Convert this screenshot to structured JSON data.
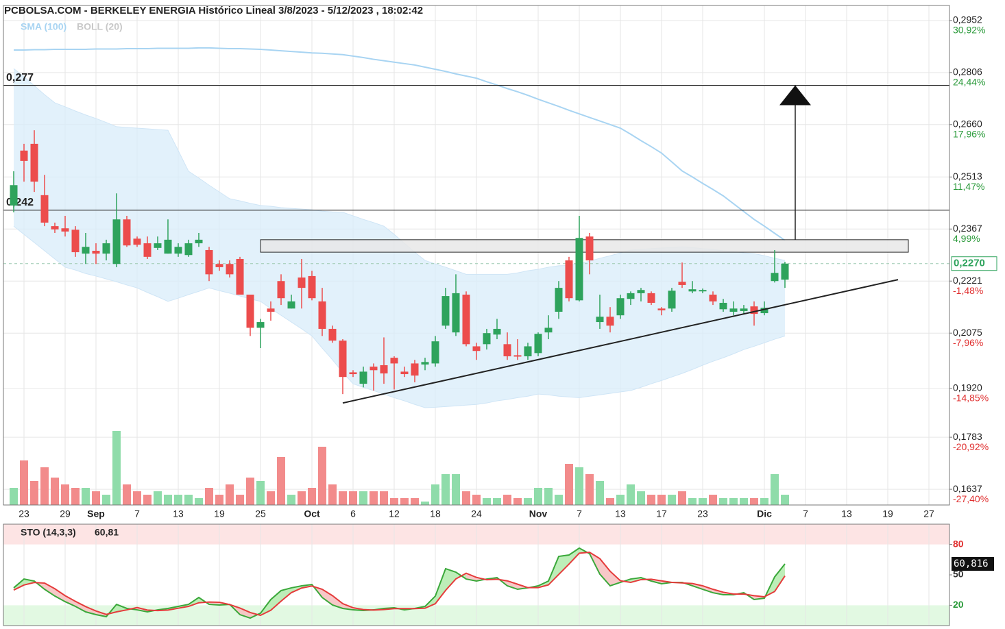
{
  "header": {
    "title": "PCBOLSA.COM - BERKELEY ENERGIA Histórico Lineal 3/8/2023 - 5/12/2023 , 18:02:42"
  },
  "chart_data": [
    {
      "type": "candlestick",
      "categories": [
        null,
        "23",
        null,
        null,
        null,
        "29",
        null,
        null,
        "Sep",
        null,
        null,
        null,
        "7",
        null,
        null,
        null,
        "13",
        null,
        null,
        null,
        "19",
        null,
        null,
        null,
        "25",
        null,
        null,
        null,
        null,
        "Oct",
        null,
        null,
        null,
        "6",
        null,
        null,
        null,
        "12",
        null,
        null,
        null,
        "18",
        null,
        null,
        null,
        "24",
        null,
        null,
        null,
        null,
        null,
        "Nov",
        null,
        null,
        null,
        "7",
        null,
        null,
        null,
        "13",
        null,
        null,
        null,
        "17",
        null,
        null,
        null,
        "23",
        null,
        null,
        null,
        null,
        null,
        "Dic",
        null,
        null,
        null,
        "7",
        null,
        null,
        null,
        "13",
        null,
        null,
        null,
        "19",
        null,
        null,
        null,
        "27",
        null,
        null
      ],
      "open": [
        0.2433,
        0.2587,
        0.2606,
        0.2462,
        0.2375,
        0.2369,
        0.2365,
        0.2298,
        0.2306,
        0.2298,
        0.2269,
        0.2394,
        0.234,
        0.2327,
        0.2314,
        0.2298,
        0.2298,
        0.2294,
        0.2327,
        0.2308,
        0.2269,
        0.2269,
        0.2283,
        0.2183,
        0.209,
        0.2144,
        0.2221,
        0.2144,
        0.2231,
        0.2235,
        0.2164,
        0.2087,
        0.2054,
        0.1965,
        0.1933,
        0.1981,
        0.1985,
        0.2006,
        0.1967,
        0.199,
        0.1987,
        0.199,
        0.2096,
        0.2077,
        0.2183,
        0.2038,
        0.2044,
        0.2071,
        0.2044,
        0.2013,
        0.201,
        0.2019,
        0.2077,
        0.2135,
        0.2279,
        0.2167,
        0.2346,
        0.2106,
        0.2121,
        0.2125,
        0.2171,
        0.2187,
        0.2187,
        0.2144,
        0.2144,
        0.2219,
        0.2192,
        0.2194,
        0.2183,
        0.2142,
        0.2135,
        0.2137,
        0.215,
        0.2131,
        0.2221,
        0.2225,
        null,
        null,
        null,
        null,
        null,
        null,
        null,
        null,
        null,
        null,
        null,
        null,
        null,
        null,
        null,
        null
      ],
      "high": [
        0.2529,
        0.2606,
        0.2644,
        0.2519,
        0.2385,
        0.2404,
        0.2375,
        0.2356,
        0.2327,
        0.2337,
        0.2467,
        0.2404,
        0.2346,
        0.2346,
        0.2346,
        0.2394,
        0.2327,
        0.2337,
        0.2356,
        0.2317,
        0.2279,
        0.2279,
        0.2289,
        0.2183,
        0.2115,
        0.2164,
        0.224,
        0.2183,
        0.2283,
        0.225,
        0.2202,
        0.2096,
        0.2058,
        0.1971,
        0.1981,
        0.199,
        0.2063,
        0.201,
        0.1981,
        0.2,
        0.2006,
        0.2067,
        0.2202,
        0.224,
        0.2192,
        0.2048,
        0.2087,
        0.2115,
        0.2077,
        0.2058,
        0.2048,
        0.2077,
        0.2125,
        0.2221,
        0.2289,
        0.2404,
        0.2356,
        0.2183,
        0.2148,
        0.2183,
        0.2192,
        0.2202,
        0.2192,
        0.2148,
        0.2202,
        0.2273,
        0.2221,
        0.22,
        0.2192,
        0.2171,
        0.2164,
        0.2154,
        0.2164,
        0.2164,
        0.2308,
        0.2275,
        null,
        null,
        null,
        null,
        null,
        null,
        null,
        null,
        null,
        null,
        null,
        null,
        null,
        null,
        null,
        null
      ],
      "low": [
        0.2414,
        0.25,
        0.2471,
        0.2375,
        0.2356,
        0.2346,
        0.2289,
        0.2269,
        0.2269,
        0.2279,
        0.226,
        0.2317,
        0.2317,
        0.2283,
        0.2308,
        0.2298,
        0.2289,
        0.2289,
        0.2317,
        0.2221,
        0.225,
        0.2231,
        0.2183,
        0.2067,
        0.2033,
        0.211,
        0.2154,
        0.2144,
        0.2144,
        0.2167,
        0.2067,
        0.2048,
        0.1904,
        0.1952,
        0.1923,
        0.1914,
        0.1933,
        0.1917,
        0.1952,
        0.1937,
        0.1971,
        0.1981,
        0.2087,
        0.2067,
        0.2038,
        0.2,
        0.2029,
        0.2058,
        0.2,
        0.2,
        0.2,
        0.201,
        0.2058,
        0.2115,
        0.2164,
        0.2164,
        0.224,
        0.2087,
        0.2077,
        0.2115,
        0.2154,
        0.2164,
        0.2154,
        0.2125,
        0.2135,
        0.2202,
        0.2187,
        0.2187,
        0.2154,
        0.2135,
        0.2125,
        0.2129,
        0.2096,
        0.2125,
        0.2217,
        0.2202,
        null,
        null,
        null,
        null,
        null,
        null,
        null,
        null,
        null,
        null,
        null,
        null,
        null,
        null,
        null,
        null
      ],
      "close": [
        0.249,
        0.2558,
        0.25,
        0.2385,
        0.2366,
        0.236,
        0.2302,
        0.2317,
        0.2298,
        0.2327,
        0.2394,
        0.2321,
        0.2323,
        0.2289,
        0.2327,
        0.2337,
        0.2317,
        0.2327,
        0.2337,
        0.224,
        0.226,
        0.224,
        0.2183,
        0.209,
        0.2106,
        0.2135,
        0.2173,
        0.2164,
        0.2202,
        0.2173,
        0.2087,
        0.2054,
        0.1952,
        0.196,
        0.1967,
        0.1971,
        0.1962,
        0.199,
        0.196,
        0.1956,
        0.1994,
        0.2052,
        0.2179,
        0.2187,
        0.2044,
        0.2025,
        0.2075,
        0.2087,
        0.201,
        0.201,
        0.2038,
        0.2073,
        0.209,
        0.2202,
        0.2173,
        0.2342,
        0.2279,
        0.2121,
        0.2096,
        0.2173,
        0.2187,
        0.2196,
        0.216,
        0.2139,
        0.2194,
        0.221,
        0.2198,
        0.2196,
        0.2164,
        0.216,
        0.2144,
        0.2144,
        0.2129,
        0.2146,
        0.2244,
        0.227,
        null,
        null,
        null,
        null,
        null,
        null,
        null,
        null,
        null,
        null,
        null,
        null,
        null,
        null,
        null,
        null
      ],
      "volume": [
        25,
        65,
        35,
        55,
        40,
        30,
        25,
        25,
        20,
        15,
        108,
        30,
        20,
        15,
        20,
        15,
        15,
        15,
        10,
        25,
        15,
        30,
        15,
        40,
        35,
        20,
        70,
        15,
        20,
        25,
        85,
        30,
        20,
        20,
        20,
        20,
        20,
        10,
        10,
        10,
        5,
        30,
        45,
        45,
        20,
        15,
        10,
        10,
        15,
        10,
        10,
        25,
        25,
        15,
        60,
        55,
        45,
        35,
        10,
        15,
        30,
        20,
        15,
        15,
        15,
        20,
        10,
        10,
        15,
        10,
        10,
        10,
        10,
        10,
        45,
        15,
        null,
        null,
        null,
        null,
        null,
        null,
        null,
        null,
        null,
        null,
        null,
        null,
        null,
        null,
        null,
        null
      ],
      "colors": {
        "up": "#2ea35c",
        "down": "#ec4c4c",
        "volume_up": "#8fdcaa",
        "volume_down": "#f28b8b"
      },
      "sma": {
        "name": "SMA (100)",
        "color": "#a8d4f2",
        "values": [
          0.2869,
          0.2869,
          0.287,
          0.287,
          0.2871,
          0.2871,
          0.2871,
          0.2871,
          0.2872,
          0.2872,
          0.2872,
          0.2873,
          0.2873,
          0.2873,
          0.2874,
          0.2874,
          0.2874,
          0.2874,
          0.2875,
          0.2875,
          0.2874,
          0.2873,
          0.2873,
          0.2872,
          0.2871,
          0.2869,
          0.2867,
          0.2865,
          0.2863,
          0.2861,
          0.286,
          0.2858,
          0.2856,
          0.2852,
          0.2848,
          0.2843,
          0.2839,
          0.2835,
          0.2831,
          0.2827,
          0.2821,
          0.2815,
          0.2809,
          0.2802,
          0.2796,
          0.279,
          0.278,
          0.2771,
          0.2761,
          0.2752,
          0.2742,
          0.2731,
          0.2721,
          0.2711,
          0.27,
          0.269,
          0.268,
          0.267,
          0.266,
          0.265,
          0.2633,
          0.2615,
          0.2598,
          0.258,
          0.2555,
          0.253,
          0.2513,
          0.2495,
          0.2478,
          0.246,
          0.2438,
          0.2416,
          0.2394,
          0.2375,
          0.2355,
          0.2335,
          null,
          null,
          null,
          null,
          null,
          null,
          null,
          null,
          null,
          null,
          null,
          null,
          null,
          null,
          null,
          null
        ]
      },
      "bollinger": {
        "name": "BOLL (20)",
        "color": "#c8c8c8",
        "fill": "#d8ecfa",
        "upper": [
          0.2817,
          0.2794,
          0.2769,
          0.2744,
          0.2721,
          0.271,
          0.2698,
          0.2687,
          0.2677,
          0.2666,
          0.2654,
          0.2652,
          0.265,
          0.2648,
          0.2646,
          0.2644,
          0.2587,
          0.2529,
          0.251,
          0.249,
          0.2471,
          0.2452,
          0.2446,
          0.2439,
          0.2433,
          0.2431,
          0.2427,
          0.2425,
          0.2423,
          0.2421,
          0.2417,
          0.2415,
          0.2414,
          0.2404,
          0.2394,
          0.2385,
          0.2375,
          0.2352,
          0.2327,
          0.2302,
          0.2279,
          0.2269,
          0.226,
          0.225,
          0.224,
          0.224,
          0.224,
          0.224,
          0.224,
          0.2244,
          0.225,
          0.2254,
          0.226,
          0.2264,
          0.2265,
          0.2269,
          0.2277,
          0.2285,
          0.2292,
          0.23,
          0.2308,
          0.231,
          0.2312,
          0.2314,
          0.2315,
          0.2317,
          0.2315,
          0.2312,
          0.231,
          0.2306,
          0.2304,
          0.23,
          0.2298,
          0.2292,
          0.2285,
          0.2279,
          null,
          null,
          null,
          null,
          null,
          null,
          null,
          null,
          null,
          null,
          null,
          null,
          null,
          null,
          null,
          null
        ],
        "lower": [
          0.2375,
          0.2352,
          0.2329,
          0.2306,
          0.2283,
          0.226,
          0.2252,
          0.2242,
          0.2235,
          0.2227,
          0.2219,
          0.221,
          0.2202,
          0.2189,
          0.2177,
          0.2164,
          0.2173,
          0.2183,
          0.2192,
          0.2202,
          0.2194,
          0.2187,
          0.2179,
          0.2171,
          0.2164,
          0.2144,
          0.2125,
          0.2106,
          0.2087,
          0.2067,
          0.2033,
          0.2,
          0.1965,
          0.1933,
          0.1923,
          0.1914,
          0.1904,
          0.1894,
          0.1885,
          0.1875,
          0.1866,
          0.1867,
          0.1869,
          0.1871,
          0.1873,
          0.1875,
          0.1879,
          0.1885,
          0.1889,
          0.1894,
          0.1898,
          0.1904,
          0.1902,
          0.1898,
          0.1896,
          0.1894,
          0.1898,
          0.1902,
          0.1906,
          0.191,
          0.1914,
          0.1923,
          0.1933,
          0.1942,
          0.1952,
          0.1962,
          0.1973,
          0.1985,
          0.1996,
          0.2006,
          0.2017,
          0.2029,
          0.2038,
          0.2048,
          0.2058,
          0.2067,
          null,
          null,
          null,
          null,
          null,
          null,
          null,
          null,
          null,
          null,
          null,
          null,
          null,
          null,
          null,
          null
        ]
      },
      "ylim": [
        0.1593,
        0.2994
      ],
      "yticks": [
        {
          "value": 0.2952,
          "label": "0,2952"
        },
        {
          "value": 0.2806,
          "label": "0,2806"
        },
        {
          "value": 0.266,
          "label": "0,2660"
        },
        {
          "value": 0.2513,
          "label": "0,2513"
        },
        {
          "value": 0.2367,
          "label": "0,2367"
        },
        {
          "value": 0.2221,
          "label": "0,2221"
        },
        {
          "value": 0.2075,
          "label": "0,2075"
        },
        {
          "value": 0.192,
          "label": "0,1920"
        },
        {
          "value": 0.1783,
          "label": "0,1783"
        },
        {
          "value": 0.1637,
          "label": "0,1637"
        }
      ],
      "ytick_change_labels": [
        "30,92%",
        "24,44%",
        "17,96%",
        "11,47%",
        "4,99%",
        "-1,48%",
        "-7,96%",
        "-14,85%",
        "-20,92%",
        "-27,40%"
      ],
      "levels": [
        {
          "value": 0.277,
          "label": "0,277"
        },
        {
          "value": 0.242,
          "label": "0,242"
        }
      ],
      "zone": {
        "x": [
          24,
          87
        ],
        "y": [
          0.2302,
          0.2337
        ]
      },
      "trend_line": {
        "x": [
          32,
          86
        ],
        "y": [
          0.1879,
          0.2225
        ]
      },
      "arrow": {
        "x": 76,
        "y": [
          0.2337,
          0.277
        ]
      },
      "last_price": {
        "value": 0.227,
        "label": "0,2270"
      },
      "grid": true
    },
    {
      "type": "line",
      "title": "STO (14,3,3)",
      "legend_value": "60,81",
      "series": [
        {
          "color": "#3aa83a",
          "values": [
            37.2,
            45.9,
            43.9,
            35.8,
            29.1,
            23.6,
            18.9,
            13.5,
            10.8,
            8.8,
            20.9,
            16.9,
            15.5,
            13.5,
            15.5,
            16.9,
            18.9,
            20.9,
            27.7,
            20.9,
            20.3,
            20.9,
            10.8,
            7.4,
            12.2,
            25.7,
            34.5,
            37.2,
            39.2,
            40.5,
            27.7,
            20.3,
            16.9,
            15.5,
            14.9,
            15.5,
            16.9,
            17.6,
            15.5,
            16.9,
            18.9,
            29.1,
            56.1,
            52.7,
            45.9,
            43.9,
            45.9,
            47.3,
            39.2,
            35.8,
            37.2,
            39.2,
            43.9,
            68.2,
            69.6,
            76.4,
            70.9,
            50.7,
            39.2,
            42.6,
            45.9,
            47.3,
            43.9,
            41.2,
            42.6,
            42.6,
            39.2,
            35.8,
            32.4,
            30.4,
            30.4,
            32.4,
            25.7,
            27.0,
            48.0,
            60.816,
            null,
            null,
            null,
            null,
            null,
            null,
            null,
            null,
            null,
            null,
            null,
            null,
            null,
            null,
            null,
            null
          ]
        },
        {
          "color": "#e53b3b",
          "values": [
            35,
            40,
            42.5,
            41.9,
            36.3,
            29.5,
            23.9,
            18.7,
            14.4,
            11.0,
            13.5,
            15.5,
            17.8,
            15.3,
            14.8,
            15.3,
            17.1,
            18.9,
            22.5,
            23.2,
            23.0,
            20.7,
            17.3,
            12.9,
            10.1,
            15.1,
            24.1,
            32.5,
            37.0,
            39.0,
            35.8,
            29.5,
            21.6,
            17.6,
            15.8,
            15.3,
            15.8,
            16.7,
            16.7,
            16.7,
            17.1,
            21.6,
            34.7,
            46.0,
            51.6,
            47.5,
            45.2,
            45.7,
            44.1,
            40.8,
            37.4,
            37.4,
            40.1,
            50.4,
            60.6,
            71.4,
            72.3,
            66.0,
            53.6,
            44.2,
            42.6,
            45.3,
            45.7,
            44.1,
            42.6,
            42.1,
            41.5,
            39.2,
            35.8,
            32.9,
            31.1,
            31.1,
            29.5,
            28.4,
            33.6,
            49,
            null,
            null,
            null,
            null,
            null,
            null,
            null,
            null,
            null,
            null,
            null,
            null,
            null,
            null,
            null,
            null
          ]
        }
      ],
      "ylim": [
        0,
        100
      ],
      "yticks": [
        80,
        50,
        20
      ],
      "ytick_colors": [
        "#e03030",
        "#333333",
        "#2a9a3a"
      ],
      "zone_colors": [
        "#fde4e4",
        "#e2f9e2"
      ],
      "last_badge": {
        "value": 60.816,
        "label": "60,816"
      }
    }
  ]
}
